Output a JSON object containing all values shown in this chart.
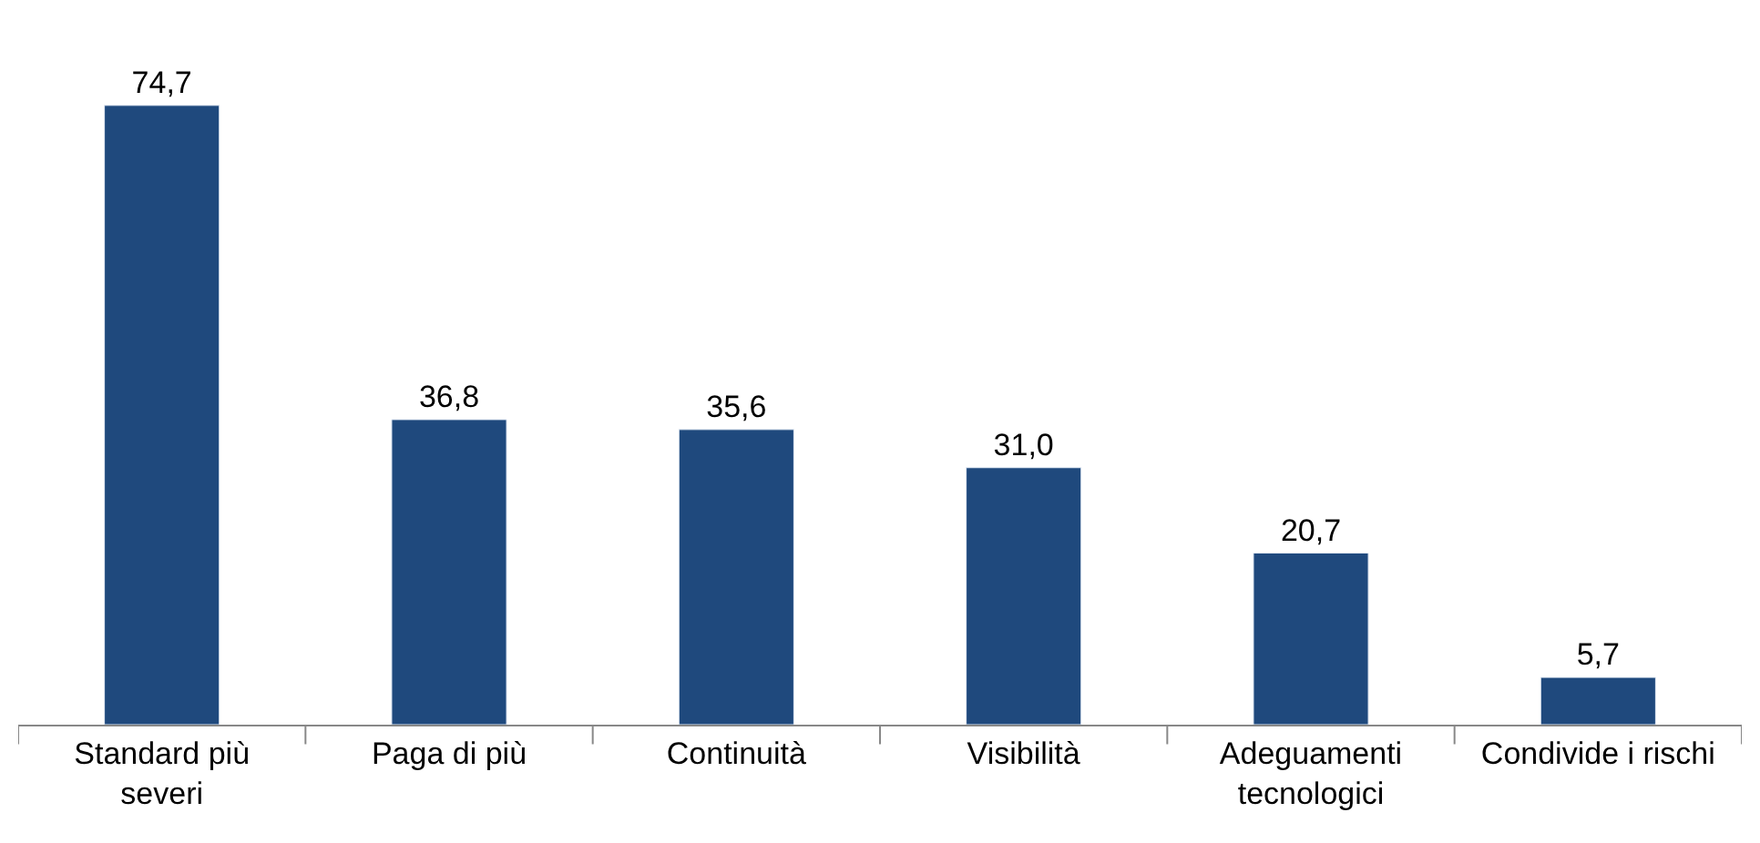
{
  "chart_data": {
    "type": "bar",
    "categories": [
      "Standard più\nseveri",
      "Paga di più",
      "Continuità",
      "Visibilità",
      "Adeguamenti\ntecnologici",
      "Condivide i rischi"
    ],
    "values": [
      74.7,
      36.8,
      35.6,
      31.0,
      20.7,
      5.7
    ],
    "value_labels": [
      "74,7",
      "36,8",
      "35,6",
      "31,0",
      "20,7",
      "5,7"
    ],
    "color": "#1f497d"
  }
}
